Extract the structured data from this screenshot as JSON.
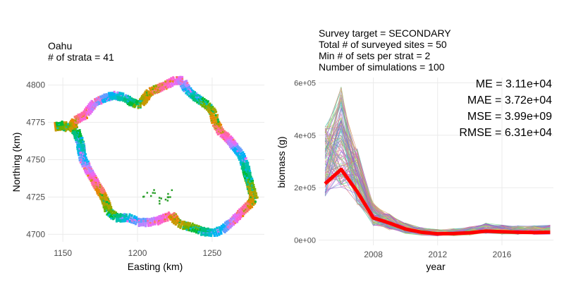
{
  "left_panel": {
    "title_lines": [
      "Oahu",
      "# of strata = 41"
    ],
    "xlabel": "Easting (km)",
    "ylabel": "Northing (km)"
  },
  "right_panel": {
    "title_lines": [
      "Survey target = SECONDARY",
      "Total # of surveyed sites = 50",
      "Min # of sets per strat = 2",
      "Number of simulations = 100"
    ],
    "metrics": [
      "ME = 3.11e+04",
      "MAE = 3.72e+04",
      "MSE = 3.99e+09",
      "RMSE = 6.31e+04"
    ],
    "xlabel": "year",
    "ylabel": "biomass (g)"
  },
  "chart_data": [
    {
      "type": "scatter",
      "title": "Oahu",
      "subtitle": "# of strata = 41",
      "xlabel": "Easting (km)",
      "ylabel": "Northing (km)",
      "xlim": [
        1140,
        1285
      ],
      "ylim": [
        4695,
        4805
      ],
      "x_ticks": [
        1150,
        1200,
        1250
      ],
      "x_tick_labels": [
        "1150",
        "1200",
        "1250"
      ],
      "y_ticks": [
        4700,
        4725,
        4750,
        4775,
        4800
      ],
      "y_tick_labels": [
        "4700",
        "4725",
        "4750",
        "4775",
        "4800"
      ],
      "grid": true,
      "legend": "none",
      "coastline": {
        "x": [
          1145,
          1154,
          1159,
          1162,
          1163,
          1166,
          1170,
          1174,
          1178,
          1181,
          1186,
          1190,
          1194,
          1197,
          1201,
          1207,
          1213,
          1218,
          1221,
          1223,
          1225,
          1228,
          1231,
          1236,
          1243,
          1251,
          1257,
          1260,
          1263,
          1266,
          1271,
          1274,
          1276,
          1278,
          1274,
          1271,
          1268,
          1264,
          1260,
          1256,
          1254,
          1252,
          1251,
          1249,
          1246,
          1240,
          1235,
          1233,
          1232,
          1230,
          1225,
          1221,
          1217,
          1212,
          1208,
          1205,
          1202,
          1199,
          1197,
          1194,
          1190,
          1185,
          1180,
          1171,
          1165,
          1158,
          1157,
          1156,
          1153,
          1150,
          1145
        ],
        "y": [
          4772,
          4773,
          4769,
          4760,
          4752,
          4745,
          4738,
          4731,
          4724,
          4715,
          4711,
          4711,
          4711,
          4710,
          4708,
          4708,
          4709,
          4711,
          4712,
          4713,
          4710,
          4707,
          4706,
          4705,
          4702,
          4701,
          4703,
          4706,
          4708,
          4711,
          4716,
          4719,
          4721,
          4724,
          4738,
          4750,
          4755,
          4760,
          4765,
          4768,
          4772,
          4775,
          4781,
          4784,
          4787,
          4791,
          4795,
          4797,
          4799,
          4803,
          4803,
          4801,
          4799,
          4797,
          4795,
          4791,
          4787,
          4787,
          4788,
          4790,
          4792,
          4793,
          4792,
          4788,
          4780,
          4776,
          4774,
          4772,
          4771,
          4773,
          4772
        ]
      },
      "interior_patch": {
        "x": [
          1204,
          1210,
          1214,
          1218,
          1221
        ],
        "y": [
          4727,
          4729,
          4724,
          4726,
          4728
        ]
      },
      "strata_colors": [
        "#F8766D",
        "#E58700",
        "#C99800",
        "#A3A500",
        "#6BB100",
        "#00BA38",
        "#00BF7D",
        "#00C0AF",
        "#00BCD8",
        "#00B0F6",
        "#619CFF",
        "#B983FF",
        "#E76BF3",
        "#FD61D1",
        "#FF67A4"
      ]
    },
    {
      "type": "line",
      "title": "Survey target = SECONDARY",
      "xlabel": "year",
      "ylabel": "biomass (g)",
      "xlim": [
        2004.6,
        2019.2
      ],
      "ylim": [
        -20000,
        620000
      ],
      "x_ticks": [
        2008,
        2012,
        2016
      ],
      "x_tick_labels": [
        "2008",
        "2012",
        "2016"
      ],
      "y_ticks": [
        0,
        200000,
        400000,
        600000
      ],
      "y_tick_labels": [
        "0e+00",
        "2e+05",
        "4e+05",
        "6e+05"
      ],
      "grid": true,
      "legend": "none",
      "x": [
        2005,
        2006,
        2007,
        2008,
        2009,
        2010,
        2011,
        2012,
        2013,
        2014,
        2015,
        2016,
        2017,
        2018,
        2019
      ],
      "series": [
        {
          "values": [
            215000,
            270000,
            185000,
            85000,
            65000,
            42000,
            30000,
            24000,
            25000,
            28000,
            34000,
            32000,
            30000,
            29000,
            30000
          ]
        }
      ],
      "simulations": {
        "count": 100,
        "peak_range_2006": [
          200000,
          585000
        ],
        "mean_values": [
          300000,
          400000,
          240000,
          100000,
          70000,
          45000,
          33000,
          28000,
          30000,
          35000,
          45000,
          40000,
          38000,
          38000,
          40000
        ]
      },
      "line_color": "#FF0000",
      "annotations": [
        "ME = 3.11e+04",
        "MAE = 3.72e+04",
        "MSE = 3.99e+09",
        "RMSE = 6.31e+04"
      ]
    }
  ]
}
